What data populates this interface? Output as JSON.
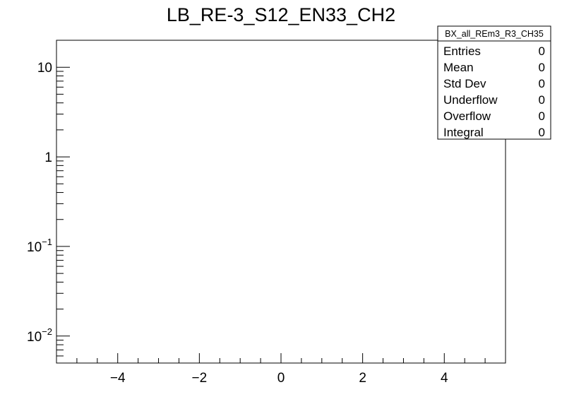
{
  "chart_data": {
    "type": "bar",
    "title": "LB_RE-3_S12_EN33_CH2",
    "xlabel": "",
    "ylabel": "",
    "xlim": [
      -5.5,
      5.5
    ],
    "ylim": [
      0.005,
      20
    ],
    "y_scale": "log",
    "grid": false,
    "x_ticks": [
      -4,
      -2,
      0,
      2,
      4
    ],
    "x_tick_labels": [
      "−4",
      "−2",
      "0",
      "2",
      "4"
    ],
    "y_ticks": [
      {
        "value": 10,
        "base": "10",
        "exp": ""
      },
      {
        "value": 1,
        "base": "1",
        "exp": ""
      },
      {
        "value": 0.1,
        "base": "10",
        "exp": "−1"
      },
      {
        "value": 0.01,
        "base": "10",
        "exp": "−2"
      }
    ],
    "x": [],
    "values": [],
    "stats_box": {
      "name": "BX_all_REm3_R3_CH35",
      "placement": "top-right",
      "rows": [
        {
          "label": "Entries",
          "value": "0"
        },
        {
          "label": "Mean",
          "value": "0"
        },
        {
          "label": "Std Dev",
          "value": "0"
        },
        {
          "label": "Underflow",
          "value": "0"
        },
        {
          "label": "Overflow",
          "value": "0"
        },
        {
          "label": "Integral",
          "value": "0"
        }
      ]
    }
  }
}
